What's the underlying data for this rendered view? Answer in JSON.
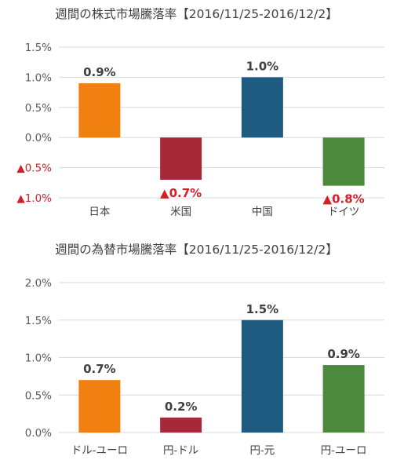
{
  "charts": [
    {
      "title": "週間の株式市場騰落率【2016/11/25-2016/12/2】",
      "chart_data": {
        "type": "bar",
        "title": "週間の株式市場騰落率【2016/11/25-2016/12/2】",
        "categories": [
          "日本",
          "米国",
          "中国",
          "ドイツ"
        ],
        "values": [
          0.9,
          -0.7,
          1.0,
          -0.8
        ],
        "data_labels": [
          "0.9%",
          "▲0.7%",
          "1.0%",
          "▲0.8%"
        ],
        "colors": [
          "#f08010",
          "#a6293a",
          "#1f5a80",
          "#4e8a3e"
        ],
        "ylim": [
          -1.0,
          1.5
        ],
        "yticks": [
          1.5,
          1.0,
          0.5,
          0.0,
          -0.5,
          -1.0
        ],
        "ytick_labels": [
          "1.5%",
          "1.0%",
          "0.5%",
          "0.0%",
          "▲0.5%",
          "▲1.0%"
        ],
        "grid": true,
        "xlabel": "",
        "ylabel": ""
      }
    },
    {
      "title": "週間の為替市場騰落率【2016/11/25-2016/12/2】",
      "chart_data": {
        "type": "bar",
        "title": "週間の為替市場騰落率【2016/11/25-2016/12/2】",
        "categories": [
          "ドル-ユーロ",
          "円-ドル",
          "円-元",
          "円-ユーロ"
        ],
        "values": [
          0.7,
          0.2,
          1.5,
          0.9
        ],
        "data_labels": [
          "0.7%",
          "0.2%",
          "1.5%",
          "0.9%"
        ],
        "colors": [
          "#f08010",
          "#a6293a",
          "#1f5a80",
          "#4e8a3e"
        ],
        "ylim": [
          0.0,
          2.0
        ],
        "yticks": [
          2.0,
          1.5,
          1.0,
          0.5,
          0.0
        ],
        "ytick_labels": [
          "2.0%",
          "1.5%",
          "1.0%",
          "0.5%",
          "0.0%"
        ],
        "grid": true,
        "xlabel": "",
        "ylabel": ""
      }
    }
  ],
  "colors": {
    "negative_label": "#d0202a",
    "grid": "#d9d9d9"
  }
}
